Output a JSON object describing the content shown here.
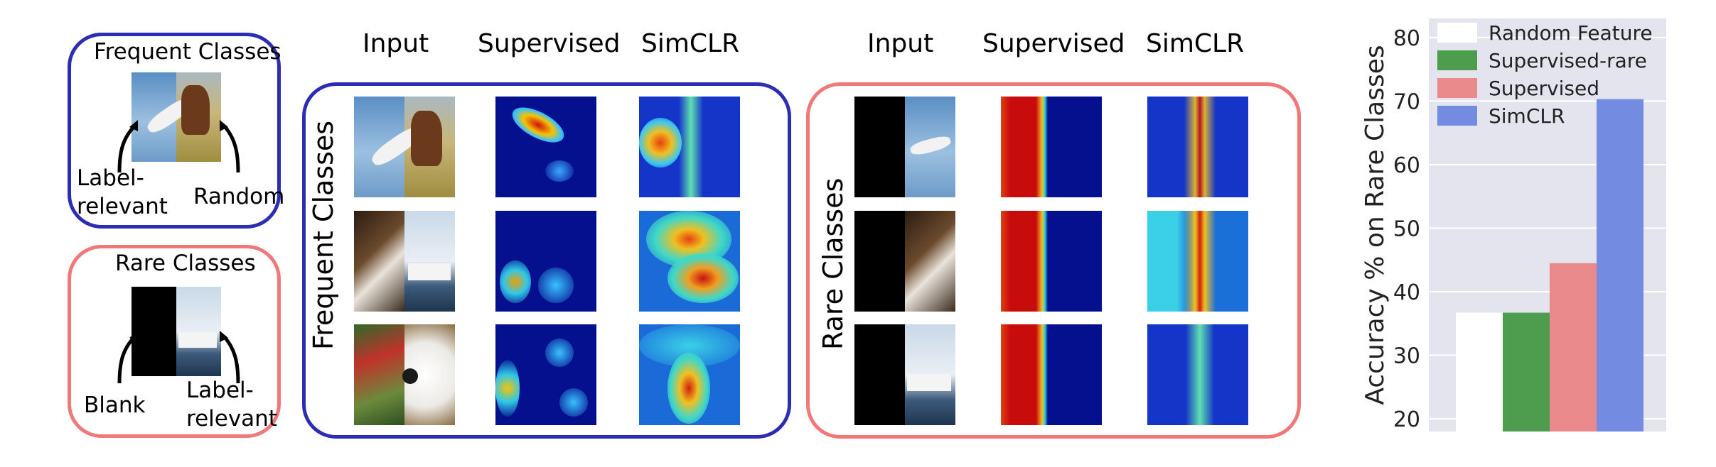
{
  "legend_panel": {
    "frequent": {
      "title": "Frequent Classes",
      "left_label": "Label-\nrelevant",
      "left_label_l1": "Label-",
      "left_label_l2": "relevant",
      "right_label": "Random"
    },
    "rare": {
      "title": "Rare Classes",
      "left_label": "Blank",
      "right_label_l1": "Label-",
      "right_label_l2": "relevant"
    }
  },
  "frequent_grid": {
    "col_headers": [
      "Input",
      "Supervised",
      "SimCLR"
    ],
    "row_label": "Frequent Classes"
  },
  "rare_grid": {
    "col_headers": [
      "Input",
      "Supervised",
      "SimCLR"
    ],
    "row_label": "Rare Classes"
  },
  "chart_data": {
    "type": "bar",
    "ylabel": "Accuracy % on Rare Classes",
    "ylim": [
      18,
      83
    ],
    "yticks": [
      20,
      30,
      40,
      50,
      60,
      70,
      80
    ],
    "grid": true,
    "legend_placement": "top-left",
    "series": [
      {
        "name": "Random Feature",
        "value": 36.7,
        "color": "#ffffff"
      },
      {
        "name": "Supervised-rare",
        "value": 36.7,
        "color": "#4e9c4e"
      },
      {
        "name": "Supervised",
        "value": 44.5,
        "color": "#ea8a8c"
      },
      {
        "name": "SimCLR",
        "value": 70.3,
        "color": "#738be0"
      }
    ],
    "background": "#e4e4ef"
  }
}
